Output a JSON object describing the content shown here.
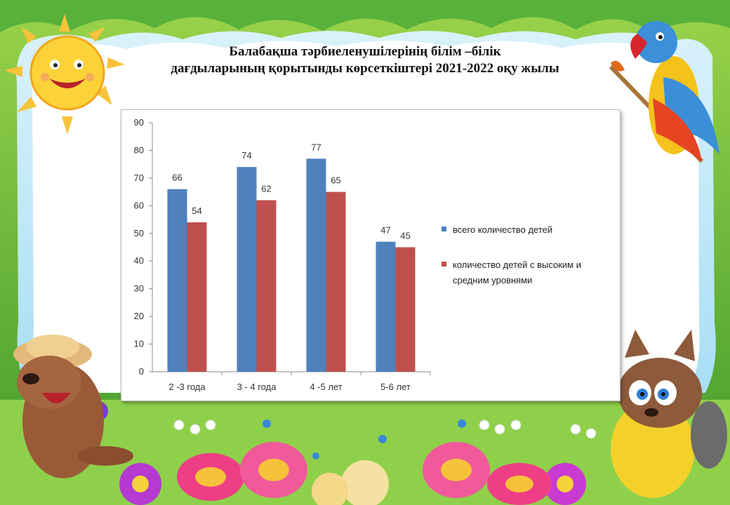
{
  "title": {
    "line1": "Балабақша тәрбиеленушілерінің білім –білік",
    "line2": "дағдыларының қорытынды көрсеткіштері 2021-2022 оқу жылы"
  },
  "colors": {
    "series1": "#4f81bd",
    "series2": "#c0504d",
    "frame_green": "#7ac043",
    "sky_blue": "#bfe6f7"
  },
  "decor": {
    "sun": "sun-icon",
    "parrot": "parrot-icon",
    "mole": "mole-icon",
    "raccoon": "raccoon-icon",
    "butterflies": "butterfly-icon",
    "flowers": "flower-icon"
  },
  "chart_data": {
    "type": "bar",
    "categories": [
      "2 -3 года",
      "3 - 4 года",
      "4 -5 лет",
      "5-6 лет"
    ],
    "series": [
      {
        "name": "всего количество детей",
        "values": [
          66,
          74,
          77,
          47
        ],
        "color": "#4f81bd"
      },
      {
        "name": "количество детей с высоким и средним уровнями",
        "values": [
          54,
          62,
          65,
          45
        ],
        "color": "#c0504d"
      }
    ],
    "ylim": [
      0,
      90
    ],
    "yticks": [
      0,
      10,
      20,
      30,
      40,
      50,
      60,
      70,
      80,
      90
    ],
    "grid": false,
    "legend": "right",
    "data_labels": true
  }
}
